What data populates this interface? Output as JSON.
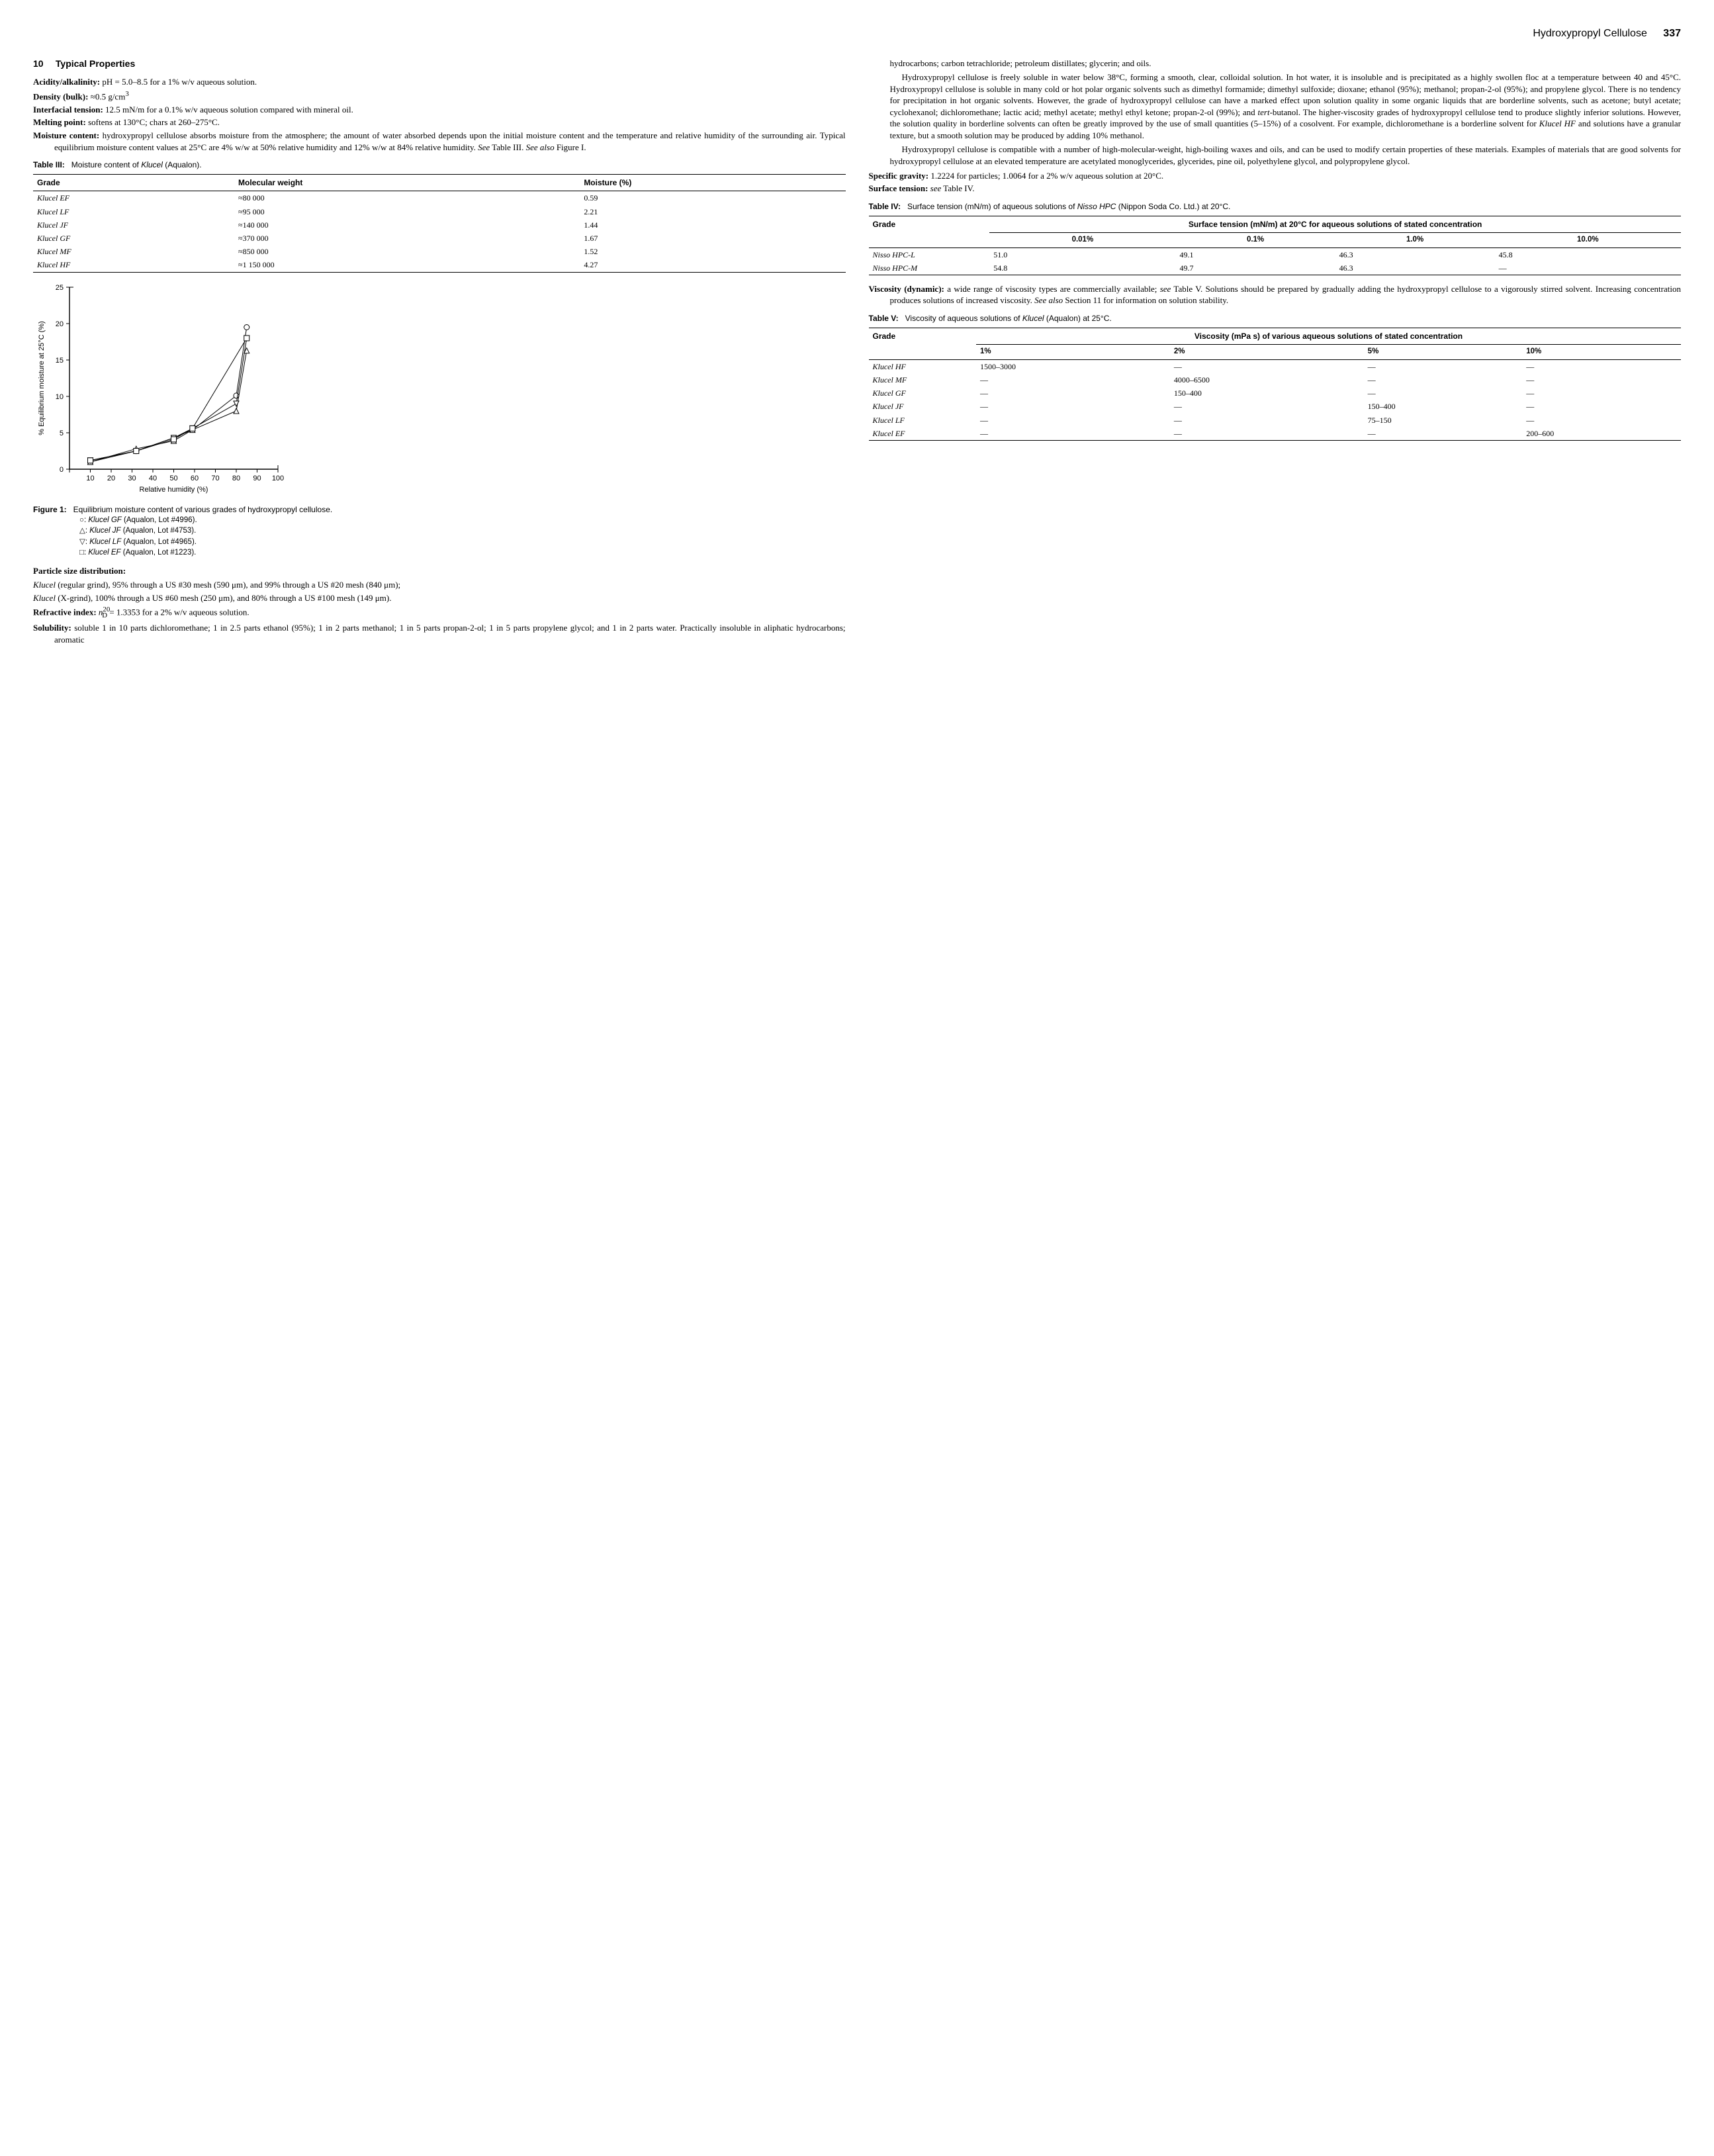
{
  "header": {
    "title": "Hydroxypropyl Cellulose",
    "page": "337"
  },
  "section": {
    "number": "10",
    "title": "Typical Properties"
  },
  "leftProps": {
    "acidity": "Acidity/alkalinity: pH = 5.0–8.5 for a 1% w/v aqueous solution.",
    "density": "Density (bulk): ≈0.5 g/cm³",
    "interfacial": "Interfacial tension: 12.5 mN/m for a 0.1% w/v aqueous solution compared with mineral oil.",
    "melting": "Melting point: softens at 130°C; chars at 260–275°C.",
    "moistureLabel": "Moisture content:",
    "moistureBody": "hydroxypropyl cellulose absorbs moisture from the atmosphere; the amount of water absorbed depends upon the initial moisture content and the temperature and relative humidity of the surrounding air. Typical equilibrium moisture content values at 25°C are 4% w/w at 50% relative humidity and 12% w/w at 84% relative humidity. See Table III. See also Figure I."
  },
  "table3": {
    "captionLabel": "Table III:",
    "captionText": "Moisture content of Klucel (Aqualon).",
    "cols": [
      "Grade",
      "Molecular weight",
      "Moisture (%)"
    ],
    "rows": [
      [
        "Klucel EF",
        "≈80 000",
        "0.59"
      ],
      [
        "Klucel LF",
        "≈95 000",
        "2.21"
      ],
      [
        "Klucel JF",
        "≈140 000",
        "1.44"
      ],
      [
        "Klucel GF",
        "≈370 000",
        "1.67"
      ],
      [
        "Klucel MF",
        "≈850 000",
        "1.52"
      ],
      [
        "Klucel HF",
        "≈1 150 000",
        "4.27"
      ]
    ]
  },
  "figure1": {
    "type": "line",
    "xlabel": "Relative humidity (%)",
    "ylabel": "% Equilibrium moisture at 25°C (%)",
    "xlim": [
      0,
      100
    ],
    "ylim": [
      0,
      25
    ],
    "xtick_step": 10,
    "ytick_step": 5,
    "axis_color": "#000000",
    "font_size": 11,
    "series": [
      {
        "name": "GF",
        "marker": "circle",
        "x": [
          10,
          32,
          50,
          59,
          80,
          85
        ],
        "y": [
          1.0,
          2.5,
          4.3,
          5.4,
          10.1,
          19.5
        ]
      },
      {
        "name": "JF",
        "marker": "triangle",
        "x": [
          10,
          32,
          50,
          59,
          80,
          85
        ],
        "y": [
          1.0,
          2.8,
          3.9,
          5.4,
          8.0,
          16.3
        ]
      },
      {
        "name": "LF",
        "marker": "down-tri",
        "x": [
          10,
          32,
          50,
          59,
          80,
          85
        ],
        "y": [
          1.2,
          2.5,
          4.3,
          5.6,
          9.0,
          18.0
        ]
      },
      {
        "name": "EF",
        "marker": "square",
        "x": [
          10,
          32,
          50,
          59,
          85
        ],
        "y": [
          1.2,
          2.5,
          4.1,
          5.6,
          18.0
        ]
      }
    ],
    "captionLabel": "Figure 1:",
    "captionText": "Equilibrium moisture content of various grades of hydroxypropyl cellulose.",
    "legend": [
      "○: Klucel GF (Aqualon, Lot #4996).",
      "△: Klucel JF (Aqualon, Lot #4753).",
      "▽: Klucel LF (Aqualon, Lot #4965).",
      "□: Klucel EF (Aqualon, Lot #1223)."
    ]
  },
  "particle": {
    "label": "Particle size distribution:",
    "l1": "Klucel (regular grind), 95% through a US #30 mesh (590 μm), and 99% through a US #20 mesh (840 μm);",
    "l2": "Klucel (X-grind), 100% through a US #60 mesh (250 μm), and 80% through a US #100 mesh (149 μm)."
  },
  "refractive": "Refractive index: n²⁰D = 1.3353 for a 2% w/v aqueous solution.",
  "solubility": {
    "label": "Solubility:",
    "body": "soluble 1 in 10 parts dichloromethane; 1 in 2.5 parts ethanol (95%); 1 in 2 parts methanol; 1 in 5 parts propan-2-ol; 1 in 5 parts propylene glycol; and 1 in 2 parts water. Practically insoluble in aliphatic hydrocarbons; aromatic"
  },
  "rightCol": {
    "p1": "hydrocarbons; carbon tetrachloride; petroleum distillates; glycerin; and oils.",
    "p2": "Hydroxypropyl cellulose is freely soluble in water below 38°C, forming a smooth, clear, colloidal solution. In hot water, it is insoluble and is precipitated as a highly swollen floc at a temperature between 40 and 45°C. Hydroxypropyl cellulose is soluble in many cold or hot polar organic solvents such as dimethyl formamide; dimethyl sulfoxide; dioxane; ethanol (95%); methanol; propan-2-ol (95%); and propylene glycol. There is no tendency for precipitation in hot organic solvents. However, the grade of hydroxypropyl cellulose can have a marked effect upon solution quality in some organic liquids that are borderline solvents, such as acetone; butyl acetate; cyclohexanol; dichloromethane; lactic acid; methyl acetate; methyl ethyl ketone; propan-2-ol (99%); and tert-butanol. The higher-viscosity grades of hydroxypropyl cellulose tend to produce slightly inferior solutions. However, the solution quality in borderline solvents can often be greatly improved by the use of small quantities (5–15%) of a cosolvent. For example, dichloromethane is a borderline solvent for Klucel HF and solutions have a granular texture, but a smooth solution may be produced by adding 10% methanol.",
    "p3": "Hydroxypropyl cellulose is compatible with a number of high-molecular-weight, high-boiling waxes and oils, and can be used to modify certain properties of these materials. Examples of materials that are good solvents for hydroxypropyl cellulose at an elevated temperature are acetylated monoglycerides, glycerides, pine oil, polyethylene glycol, and polypropylene glycol.",
    "sg": "Specific gravity: 1.2224 for particles; 1.0064 for a 2% w/v aqueous solution at 20°C.",
    "st": "Surface tension: see Table IV."
  },
  "table4": {
    "captionLabel": "Table IV:",
    "captionText": "Surface tension (mN/m) of aqueous solutions of Nisso HPC (Nippon Soda Co. Ltd.) at 20°C.",
    "header1": "Grade",
    "header2": "Surface tension (mN/m) at 20°C for aqueous solutions of stated concentration",
    "subcols": [
      "0.01%",
      "0.1%",
      "1.0%",
      "10.0%"
    ],
    "rows": [
      [
        "Nisso HPC-L",
        "51.0",
        "49.1",
        "46.3",
        "45.8"
      ],
      [
        "Nisso HPC-M",
        "54.8",
        "49.7",
        "46.3",
        "—"
      ]
    ]
  },
  "visc": {
    "label": "Viscosity (dynamic):",
    "body": "a wide range of viscosity types are commercially available; see Table V. Solutions should be prepared by gradually adding the hydroxypropyl cellulose to a vigorously stirred solvent. Increasing concentration produces solutions of increased viscosity. See also Section 11 for information on solution stability."
  },
  "table5": {
    "captionLabel": "Table V:",
    "captionText": "Viscosity of aqueous solutions of Klucel (Aqualon) at 25°C.",
    "header1": "Grade",
    "header2": "Viscosity (mPa s) of various aqueous solutions of stated concentration",
    "subcols": [
      "1%",
      "2%",
      "5%",
      "10%"
    ],
    "rows": [
      [
        "Klucel HF",
        "1500–3000",
        "—",
        "—",
        "—"
      ],
      [
        "Klucel MF",
        "—",
        "4000–6500",
        "—",
        "—"
      ],
      [
        "Klucel GF",
        "—",
        "150–400",
        "—",
        "—"
      ],
      [
        "Klucel JF",
        "—",
        "—",
        "150–400",
        "—"
      ],
      [
        "Klucel LF",
        "—",
        "—",
        "75–150",
        "—"
      ],
      [
        "Klucel EF",
        "—",
        "—",
        "—",
        "200–600"
      ]
    ]
  }
}
